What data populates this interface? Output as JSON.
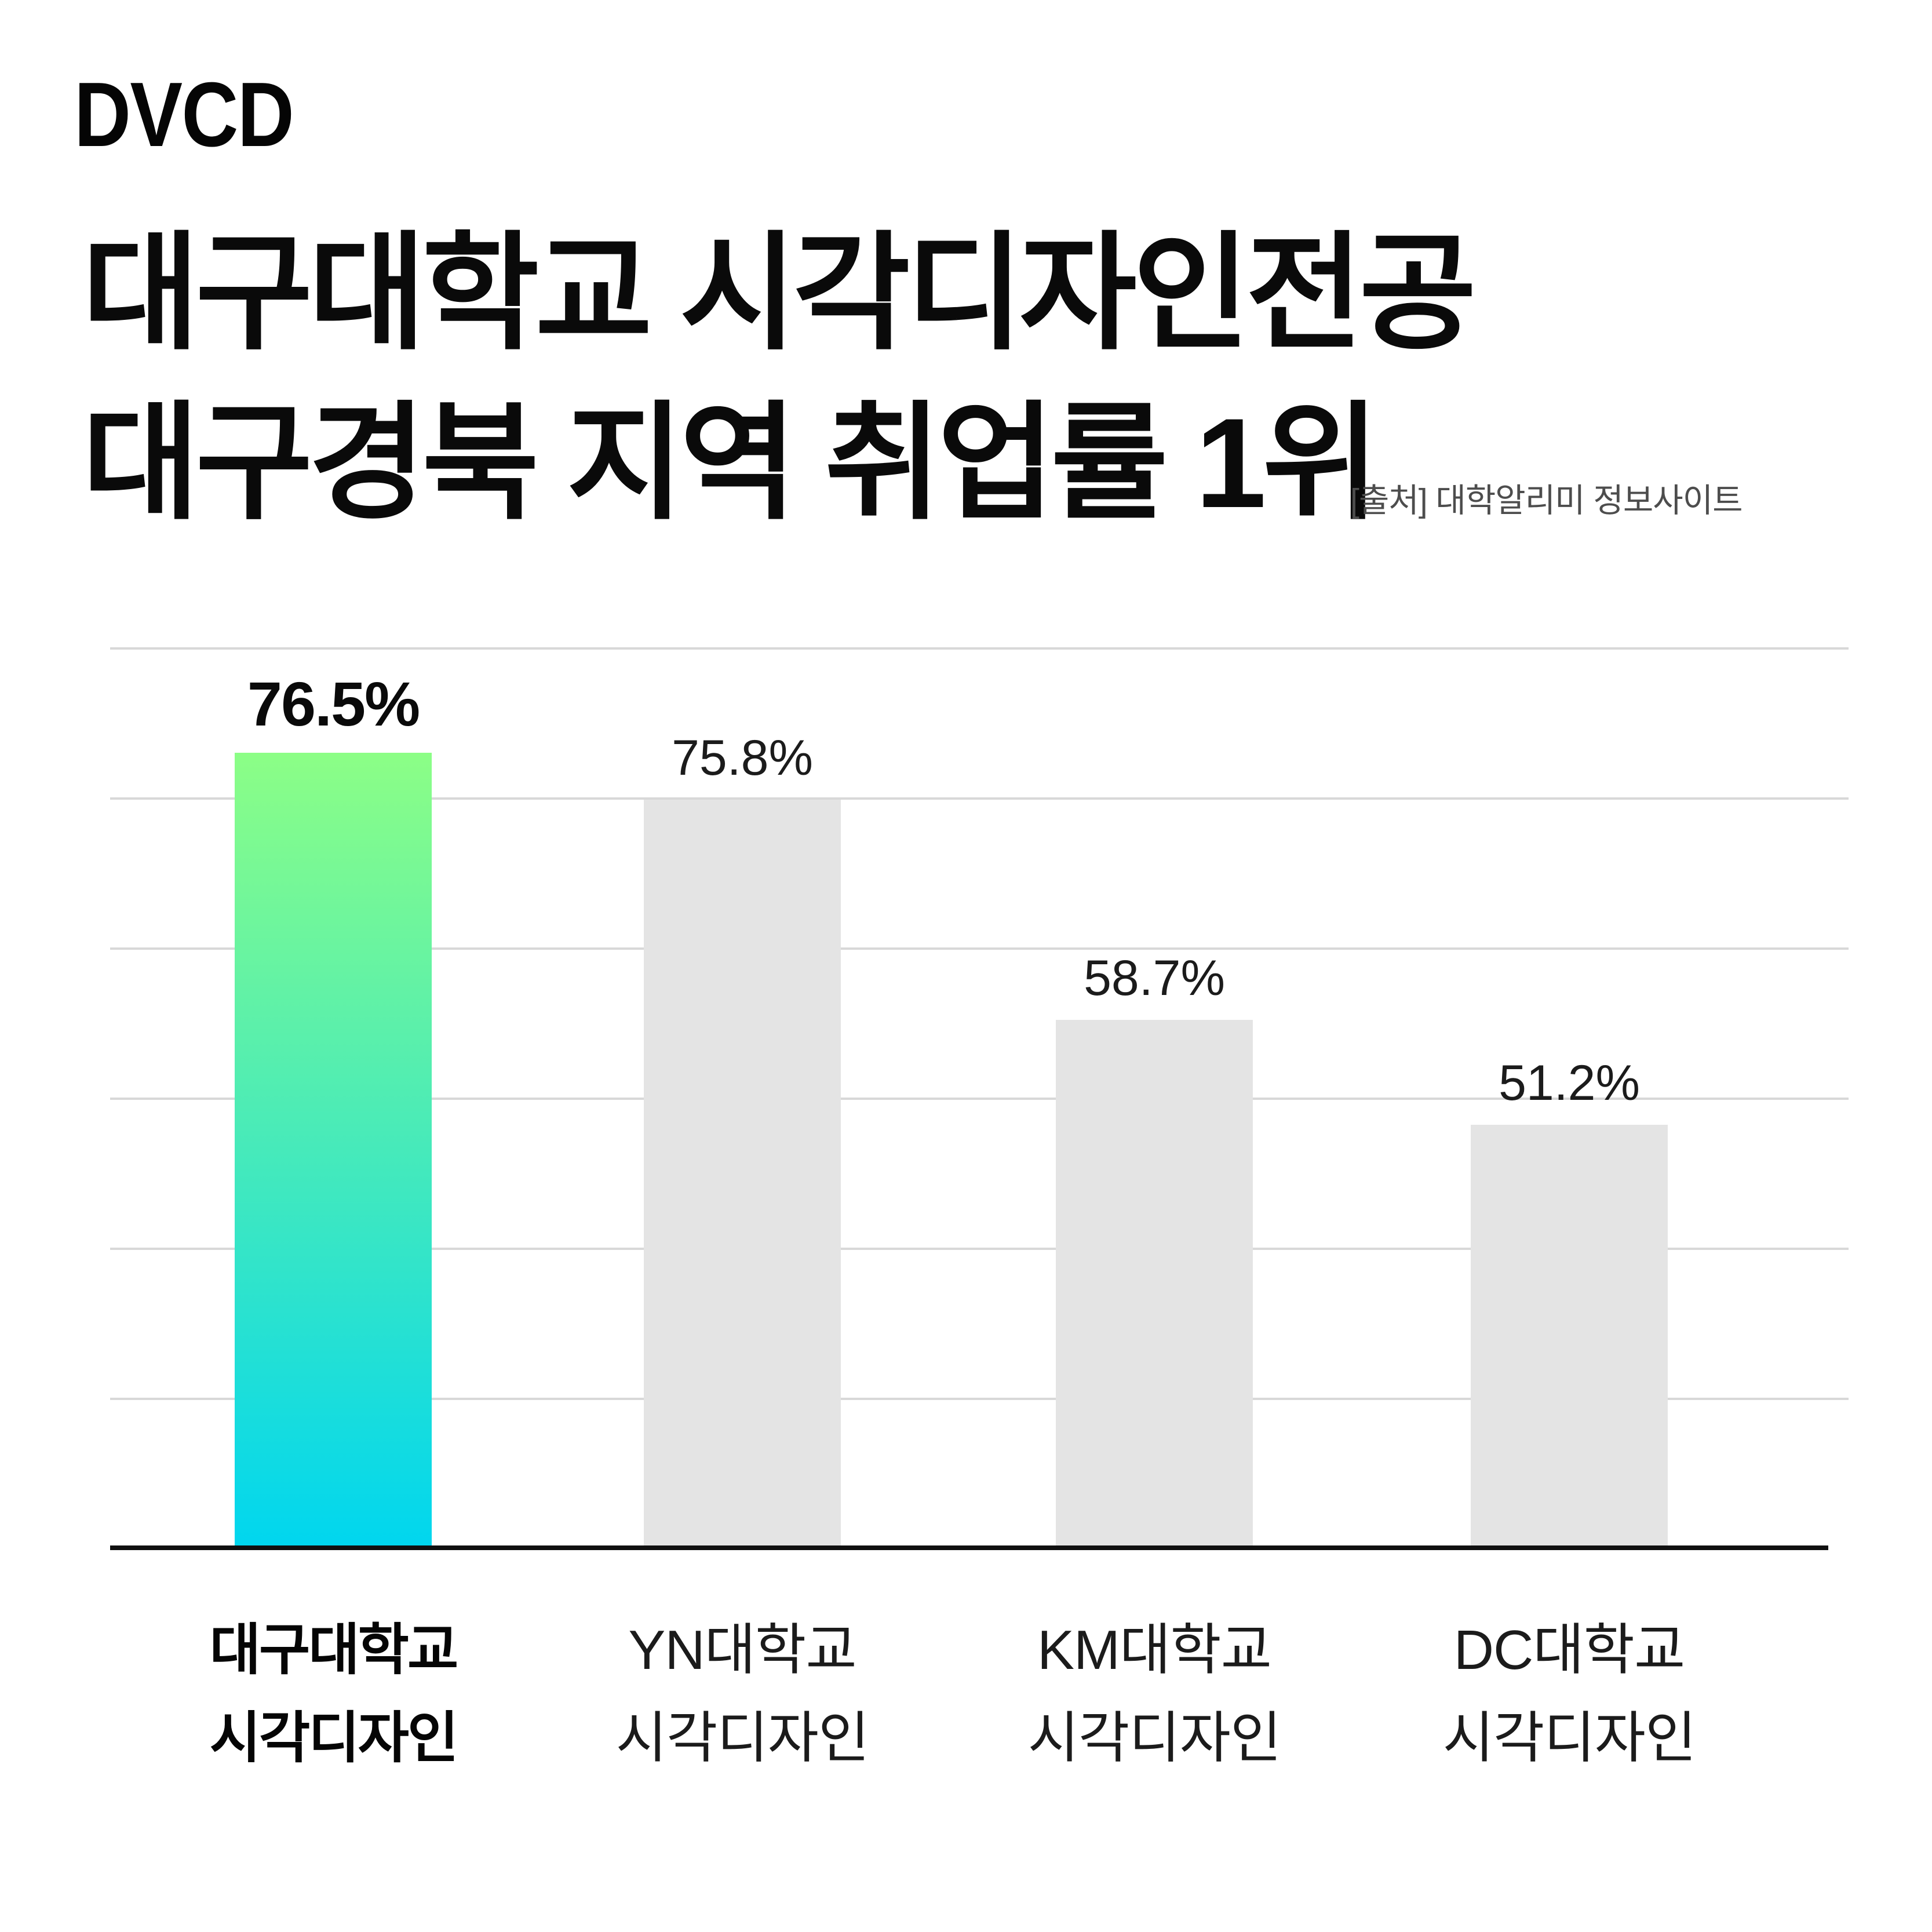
{
  "logo": {
    "text": "DVCD"
  },
  "header": {
    "title_line1": "대구대학교 시각디자인전공",
    "title_line2": "대구경북 지역 취업률 1위",
    "source_note": "[출처] 대학알리미 정보사이트"
  },
  "chart_data": {
    "type": "bar",
    "title": "대구경북 지역 취업률 1위",
    "categories": [
      "대구대학교 시각디자인",
      "YN대학교 시각디자인",
      "KM대학교 시각디자인",
      "DC대학교 시각디자인"
    ],
    "category_lines": [
      [
        "대구대학교",
        "시각디자인"
      ],
      [
        "YN대학교",
        "시각디자인"
      ],
      [
        "KM대학교",
        "시각디자인"
      ],
      [
        "DC대학교",
        "시각디자인"
      ]
    ],
    "values": [
      76.5,
      75.8,
      58.7,
      51.2
    ],
    "value_labels": [
      "76.5%",
      "75.8%",
      "58.7%",
      "51.2%"
    ],
    "unit": "%",
    "highlight_index": 0,
    "grid": true,
    "legend": false,
    "gridline_count": 6,
    "bar_rendered_height_frac": [
      0.883,
      0.831,
      0.586,
      0.47
    ],
    "colors": {
      "highlight_gradient_top": "#8CFE86",
      "highlight_gradient_bottom": "#00D6EF",
      "bar_gray": "#E4E4E4",
      "gridline": "#D8D8D8",
      "axis": "#101010",
      "value_text": "#0A0A0A",
      "source_text": "#4D4D4D",
      "background": "#FFFFFF"
    }
  }
}
